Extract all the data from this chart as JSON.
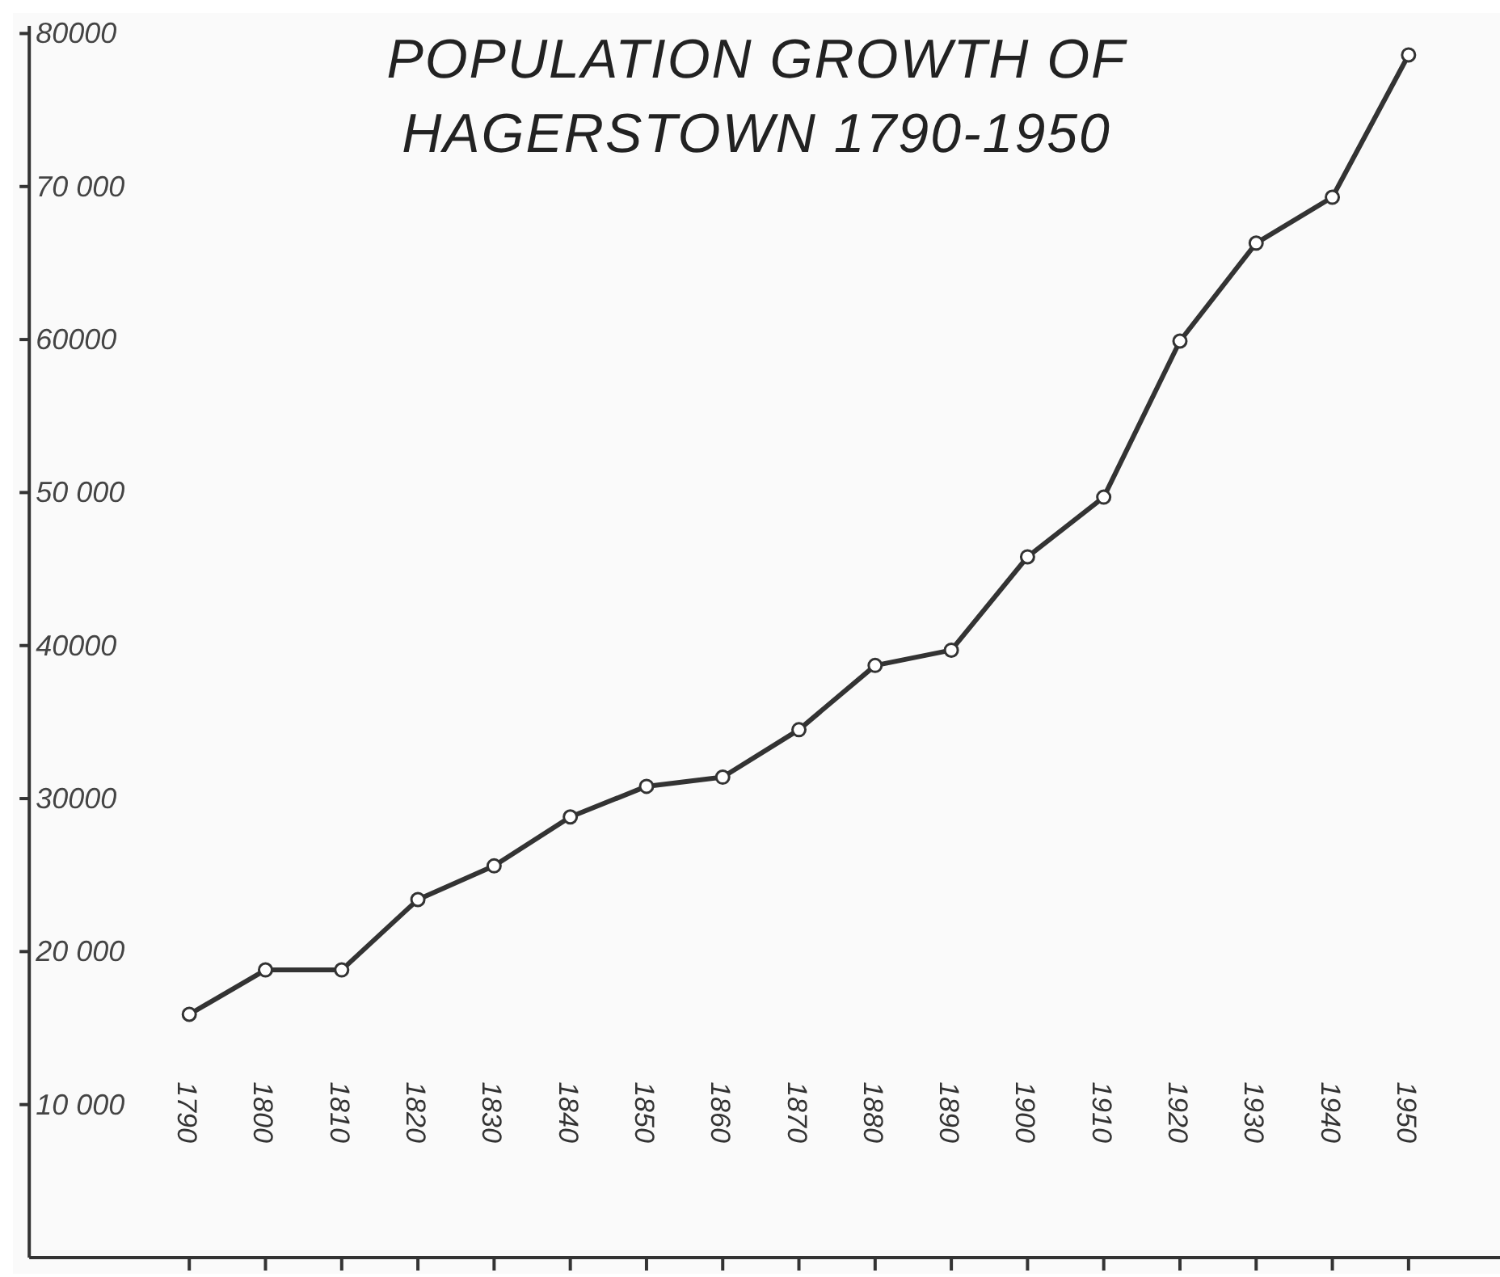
{
  "chart_data": {
    "type": "line",
    "title": "POPULATION GROWTH OF HAGERSTOWN 1790-1950",
    "x": [
      1790,
      1800,
      1810,
      1820,
      1830,
      1840,
      1850,
      1860,
      1870,
      1880,
      1890,
      1900,
      1910,
      1920,
      1930,
      1940,
      1950
    ],
    "series": [
      {
        "color": "#333333",
        "values": [
          15900,
          18800,
          18800,
          23400,
          25600,
          28800,
          30800,
          31400,
          34500,
          38700,
          39700,
          45800,
          49700,
          59900,
          66300,
          69300,
          78600
        ]
      }
    ],
    "xlim": [
      1769,
      1962
    ],
    "xticks": [
      1790,
      1800,
      1810,
      1820,
      1830,
      1840,
      1850,
      1860,
      1870,
      1880,
      1890,
      1900,
      1910,
      1920,
      1930,
      1940,
      1950
    ],
    "ylim": [
      0,
      80500
    ],
    "yticks": [
      {
        "value": 10000,
        "label": "10 000"
      },
      {
        "value": 20000,
        "label": "20 000"
      },
      {
        "value": 30000,
        "label": "30000"
      },
      {
        "value": 40000,
        "label": "40000"
      },
      {
        "value": 50000,
        "label": "50 000"
      },
      {
        "value": 60000,
        "label": "60000"
      },
      {
        "value": 70000,
        "label": "70 000"
      },
      {
        "value": 80000,
        "label": "80000"
      }
    ],
    "marker": "circle",
    "line_style": "solid",
    "grid": false,
    "legend": false
  }
}
